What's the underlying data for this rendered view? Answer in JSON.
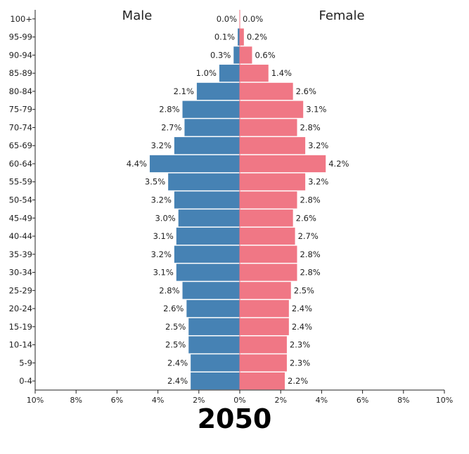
{
  "chart_data": {
    "type": "bar",
    "subtype": "population-pyramid",
    "year": "2050",
    "left_title": "Male",
    "right_title": "Female",
    "xlim": [
      -10,
      10
    ],
    "x_ticks": [
      {
        "value": -10,
        "label": "10%"
      },
      {
        "value": -8,
        "label": "8%"
      },
      {
        "value": -6,
        "label": "6%"
      },
      {
        "value": -4,
        "label": "4%"
      },
      {
        "value": -2,
        "label": "2%"
      },
      {
        "value": 0,
        "label": "0%"
      },
      {
        "value": 2,
        "label": "2%"
      },
      {
        "value": 4,
        "label": "4%"
      },
      {
        "value": 6,
        "label": "6%"
      },
      {
        "value": 8,
        "label": "8%"
      },
      {
        "value": 10,
        "label": "10%"
      }
    ],
    "categories": [
      "100+",
      "95-99",
      "90-94",
      "85-89",
      "80-84",
      "75-79",
      "70-74",
      "65-69",
      "60-64",
      "55-59",
      "50-54",
      "45-49",
      "40-44",
      "35-39",
      "30-34",
      "25-29",
      "20-24",
      "15-19",
      "10-14",
      "5-9",
      "0-4"
    ],
    "series": [
      {
        "name": "Male",
        "color": "#4682b4",
        "values": [
          0.0,
          0.1,
          0.3,
          1.0,
          2.1,
          2.8,
          2.7,
          3.2,
          4.4,
          3.5,
          3.2,
          3.0,
          3.1,
          3.2,
          3.1,
          2.8,
          2.6,
          2.5,
          2.5,
          2.4,
          2.4
        ],
        "labels": [
          "0.0%",
          "0.1%",
          "0.3%",
          "1.0%",
          "2.1%",
          "2.8%",
          "2.7%",
          "3.2%",
          "4.4%",
          "3.5%",
          "3.2%",
          "3.0%",
          "3.1%",
          "3.2%",
          "3.1%",
          "2.8%",
          "2.6%",
          "2.5%",
          "2.5%",
          "2.4%",
          "2.4%"
        ]
      },
      {
        "name": "Female",
        "color": "#f07785",
        "values": [
          0.0,
          0.2,
          0.6,
          1.4,
          2.6,
          3.1,
          2.8,
          3.2,
          4.2,
          3.2,
          2.8,
          2.6,
          2.7,
          2.8,
          2.8,
          2.5,
          2.4,
          2.4,
          2.3,
          2.3,
          2.2
        ],
        "labels": [
          "0.0%",
          "0.2%",
          "0.6%",
          "1.4%",
          "2.6%",
          "3.1%",
          "2.8%",
          "3.2%",
          "4.2%",
          "3.2%",
          "2.8%",
          "2.6%",
          "2.7%",
          "2.8%",
          "2.8%",
          "2.5%",
          "2.4%",
          "2.4%",
          "2.3%",
          "2.3%",
          "2.2%"
        ]
      }
    ],
    "colors": {
      "axis": "#222222",
      "text": "#222222"
    }
  }
}
